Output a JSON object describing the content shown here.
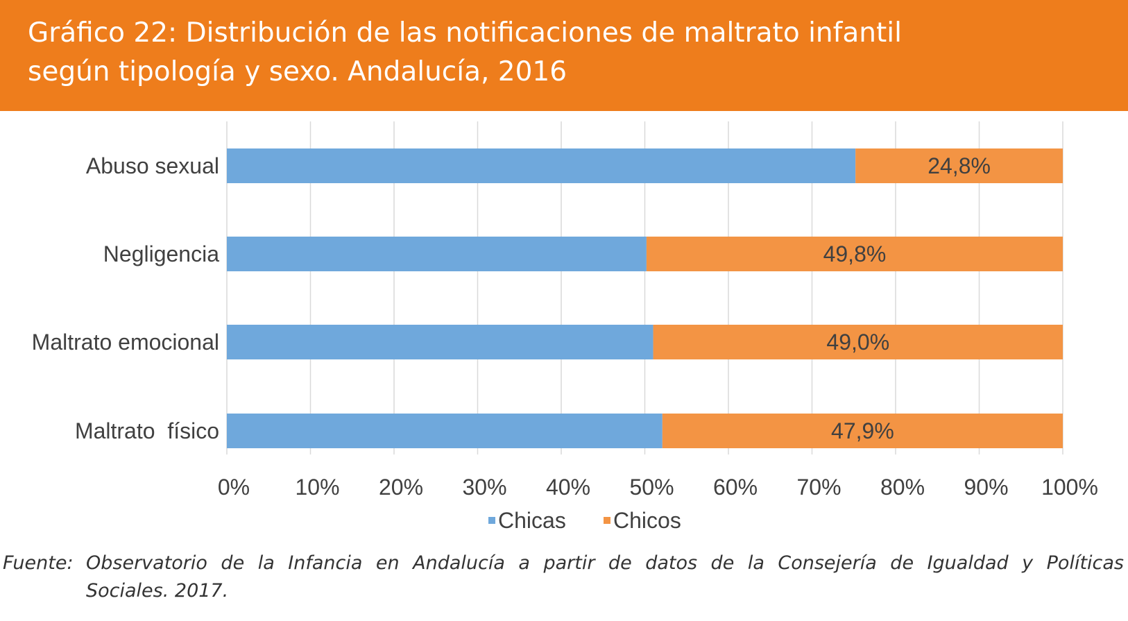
{
  "title": {
    "line1": "Gráfico 22: Distribución de las notificaciones de maltrato infantil",
    "line2": "según tipología y sexo. Andalucía, 2016"
  },
  "source": {
    "label": "Fuente:",
    "line1": "Observatorio de la Infancia en Andalucía a partir de datos de la Consejería de Igualdad y Políticas",
    "line2": "Sociales. 2017."
  },
  "chart_data": {
    "type": "bar",
    "orientation": "horizontal",
    "stacked": "percent",
    "categories": [
      "Abuso sexual",
      "Negligencia",
      "Maltrato emocional",
      "Maltrato  físico"
    ],
    "series": [
      {
        "name": "Chicas",
        "values": [
          75.2,
          50.2,
          51.0,
          52.1
        ],
        "color": "#6fa8dc",
        "data_labels": [
          "",
          "",
          "",
          ""
        ]
      },
      {
        "name": "Chicos",
        "values": [
          24.8,
          49.8,
          49.0,
          47.9
        ],
        "color": "#f39444",
        "data_labels": [
          "24,8%",
          "49,8%",
          "49,0%",
          "47,9%"
        ]
      }
    ],
    "xlim": [
      0,
      100
    ],
    "xticks": [
      0,
      10,
      20,
      30,
      40,
      50,
      60,
      70,
      80,
      90,
      100
    ],
    "xtick_labels": [
      "0%",
      "10%",
      "20%",
      "30%",
      "40%",
      "50%",
      "60%",
      "70%",
      "80%",
      "90%",
      "100%"
    ],
    "grid": "vertical",
    "legend": "bottom-center"
  }
}
